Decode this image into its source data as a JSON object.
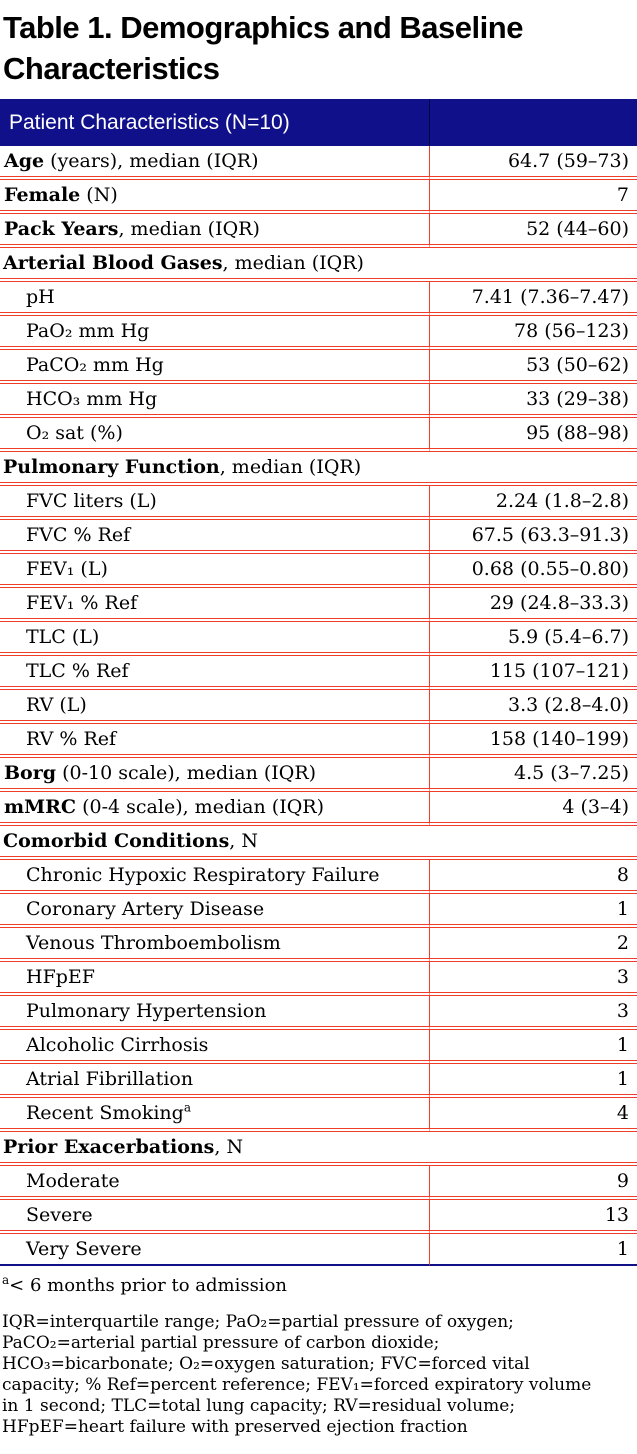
{
  "title": "Table 1. Demographics and Baseline Characteristics",
  "colors": {
    "header_bg": "#10108a",
    "header_divider": "#05053f",
    "rule_red": "#ee3e2b",
    "bottom_border_navy": "#10108a",
    "text": "#000000",
    "header_text": "#ffffff"
  },
  "table": {
    "header": {
      "label": "Patient Characteristics (N=10)",
      "value": ""
    },
    "rows": [
      {
        "type": "data",
        "bold": "Age",
        "rest": " (years), median (IQR)",
        "value": "64.7 (59–73)"
      },
      {
        "type": "data",
        "bold": "Female",
        "rest": " (N)",
        "value": "7"
      },
      {
        "type": "data",
        "bold": "Pack Years",
        "rest": ", median (IQR)",
        "value": "52 (44–60)"
      },
      {
        "type": "section",
        "bold": "Arterial Blood Gases",
        "rest": ", median (IQR)"
      },
      {
        "type": "sub",
        "rest": "pH",
        "value": "7.41 (7.36–7.47)"
      },
      {
        "type": "sub",
        "rest": "PaO₂ mm Hg",
        "value": "78 (56–123)"
      },
      {
        "type": "sub",
        "rest": "PaCO₂ mm Hg",
        "value": "53 (50–62)"
      },
      {
        "type": "sub",
        "rest": "HCO₃ mm Hg",
        "value": "33 (29–38)"
      },
      {
        "type": "sub",
        "rest": "O₂ sat (%)",
        "value": "95 (88–98)"
      },
      {
        "type": "section",
        "bold": "Pulmonary Function",
        "rest": ", median (IQR)"
      },
      {
        "type": "sub",
        "rest": "FVC liters (L)",
        "value": "2.24 (1.8–2.8)"
      },
      {
        "type": "sub",
        "rest": "FVC % Ref",
        "value": "67.5 (63.3–91.3)"
      },
      {
        "type": "sub",
        "rest": "FEV₁ (L)",
        "value": "0.68 (0.55–0.80)"
      },
      {
        "type": "sub",
        "rest": "FEV₁ % Ref",
        "value": "29 (24.8–33.3)"
      },
      {
        "type": "sub",
        "rest": "TLC (L)",
        "value": "5.9 (5.4–6.7)"
      },
      {
        "type": "sub",
        "rest": "TLC % Ref",
        "value": "115 (107–121)"
      },
      {
        "type": "sub",
        "rest": "RV (L)",
        "value": "3.3 (2.8–4.0)"
      },
      {
        "type": "sub",
        "rest": "RV % Ref",
        "value": "158 (140–199)"
      },
      {
        "type": "data",
        "bold": "Borg",
        "rest": " (0-10 scale), median (IQR)",
        "value": "4.5 (3–7.25)"
      },
      {
        "type": "data",
        "bold": "mMRC",
        "rest": " (0-4 scale), median (IQR)",
        "value": "4 (3–4)"
      },
      {
        "type": "section",
        "bold": "Comorbid Conditions",
        "rest": ", N"
      },
      {
        "type": "sub",
        "rest": "Chronic Hypoxic Respiratory Failure",
        "value": "8"
      },
      {
        "type": "sub",
        "rest": "Coronary Artery Disease",
        "value": "1"
      },
      {
        "type": "sub",
        "rest": "Venous Thromboembolism",
        "value": "2"
      },
      {
        "type": "sub",
        "rest": "HFpEF",
        "value": "3"
      },
      {
        "type": "sub",
        "rest": "Pulmonary Hypertension",
        "value": "3"
      },
      {
        "type": "sub",
        "rest": "Alcoholic Cirrhosis",
        "value": "1"
      },
      {
        "type": "sub",
        "rest": "Atrial Fibrillation",
        "value": "1"
      },
      {
        "type": "sub",
        "rest": "Recent Smoking",
        "sup": "a",
        "value": "4"
      },
      {
        "type": "section",
        "bold": "Prior Exacerbations",
        "rest": ", N"
      },
      {
        "type": "sub",
        "rest": "Moderate",
        "value": "9"
      },
      {
        "type": "sub",
        "rest": "Severe",
        "value": "13"
      },
      {
        "type": "sub",
        "rest": "Very Severe",
        "value": "1"
      }
    ]
  },
  "footnotes": {
    "marker": "a",
    "marker_text": "< 6 months prior to admission",
    "abbreviation_lines": [
      "IQR=interquartile range; PaO₂=partial pressure of oxygen;",
      "PaCO₂=arterial partial pressure of carbon dioxide;",
      "HCO₃=bicarbonate; O₂=oxygen saturation; FVC=forced vital",
      "capacity; % Ref=percent reference; FEV₁=forced expiratory volume",
      "in 1 second; TLC=total lung capacity; RV=residual volume;",
      "HFpEF=heart failure with preserved ejection fraction"
    ]
  }
}
